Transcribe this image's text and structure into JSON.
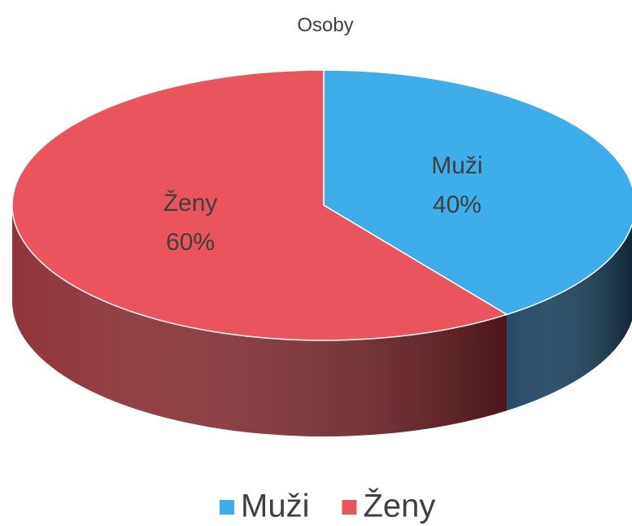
{
  "chart_data": {
    "type": "pie3d",
    "title": "Osoby",
    "categories": [
      "Muži",
      "Ženy"
    ],
    "values": [
      40,
      60
    ],
    "value_labels": [
      "40%",
      "60%"
    ],
    "colors": [
      "#3daee9",
      "#ea545d"
    ],
    "side_colors": [
      "#17405e",
      "#8a2a30"
    ],
    "legend": "bottom"
  }
}
